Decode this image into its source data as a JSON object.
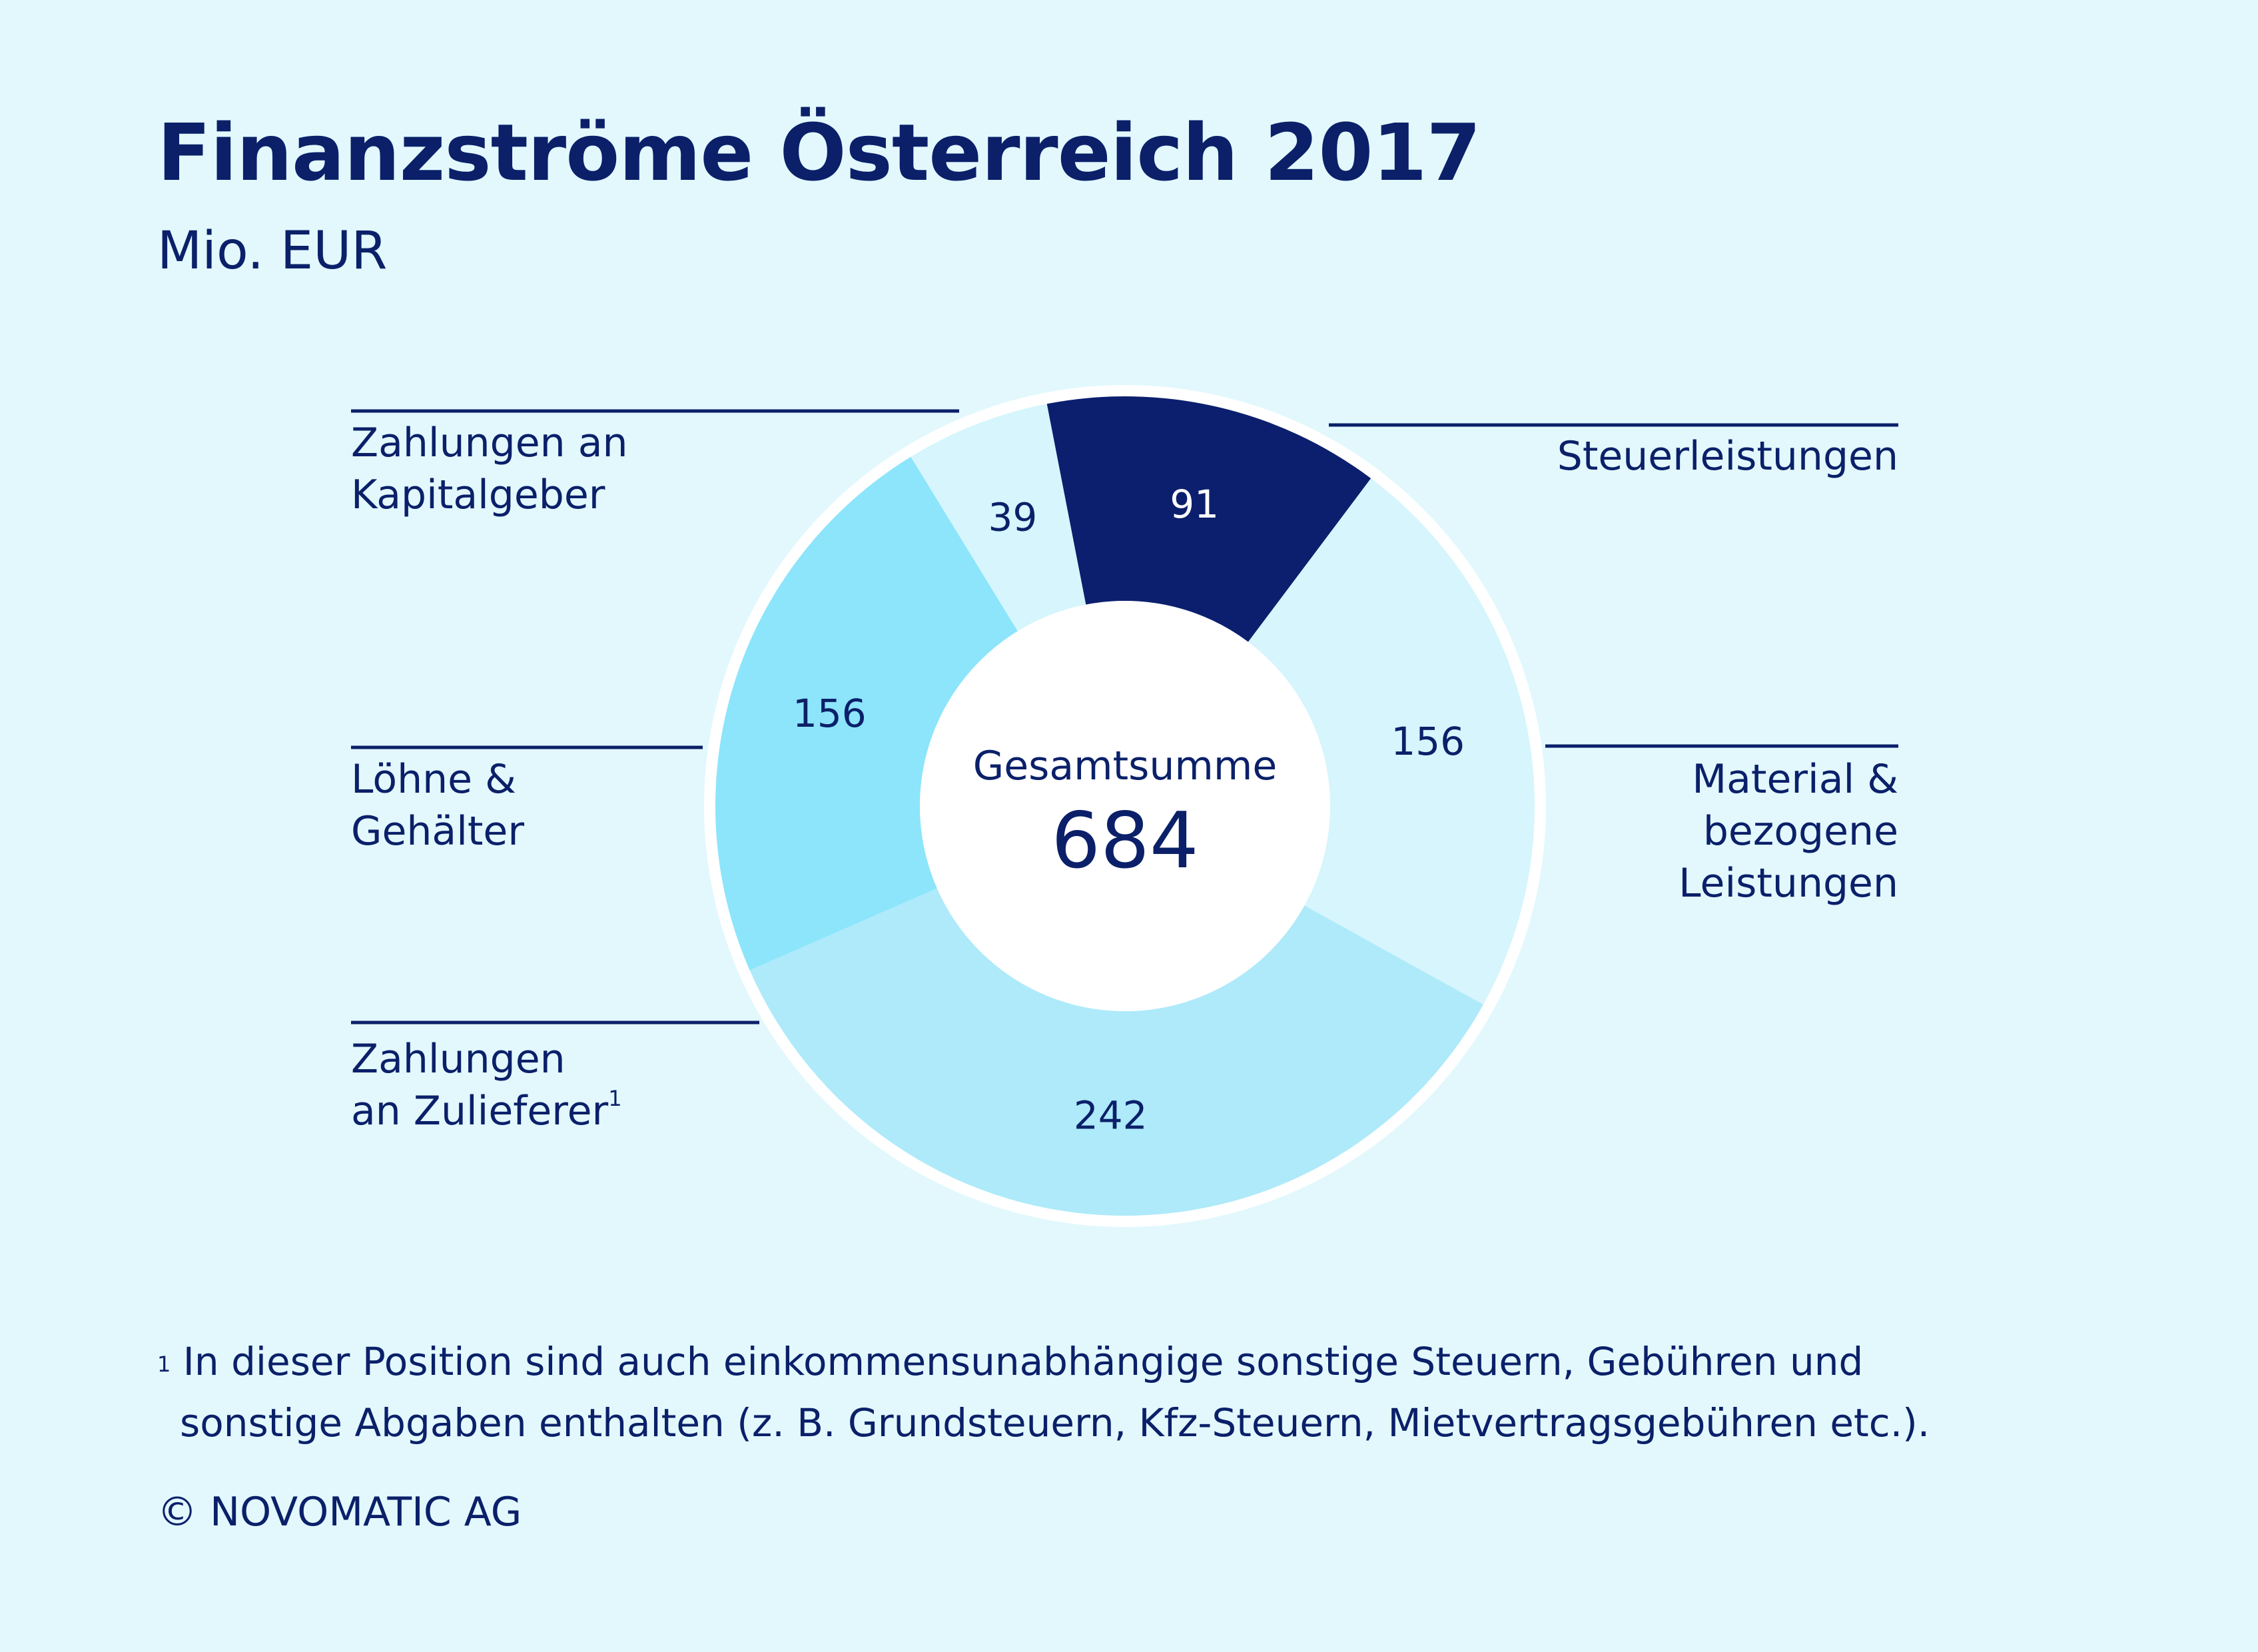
{
  "title": "Finanzströme Österreich 2017",
  "subtitle": "Mio. EUR",
  "chart_data": {
    "type": "pie",
    "variant": "donut",
    "unit": "Mio. EUR",
    "center_label": "Gesamtsumme",
    "total": 684,
    "slices": [
      {
        "label_lines": [
          "Steuerleistungen"
        ],
        "value": 91,
        "color": "#0b1f6e",
        "value_color": "#ffffff"
      },
      {
        "label_lines": [
          "Material &",
          "bezogene",
          "Leistungen"
        ],
        "value": 156,
        "color": "#d6f5fc",
        "value_color": "#0b2069"
      },
      {
        "label_lines": [
          "Zahlungen",
          "an Zulieferer"
        ],
        "label_sup": "1",
        "value": 242,
        "color": "#aeeafa",
        "value_color": "#0b2069"
      },
      {
        "label_lines": [
          "Löhne &",
          "Gehälter"
        ],
        "value": 156,
        "color": "#8ce5fb",
        "value_color": "#0b2069"
      },
      {
        "label_lines": [
          "Zahlungen an",
          "Kapitalgeber"
        ],
        "value": 39,
        "color": "#d6f5fc",
        "value_color": "#0b2069"
      }
    ]
  },
  "footnote": {
    "marker": "1",
    "line1": "In dieser Position sind auch einkommensunabhängige sonstige Steuern, Gebühren und",
    "line2": "sonstige Abgaben enthalten (z. B. Grundsteuern, Kfz-Steuern, Mietvertragsgebühren etc.)."
  },
  "copyright": "© NOVOMATIC AG",
  "colors": {
    "background": "#e2f8fd",
    "text": "#0b2069",
    "leader_line": "#0b2069",
    "center": "#ffffff"
  }
}
